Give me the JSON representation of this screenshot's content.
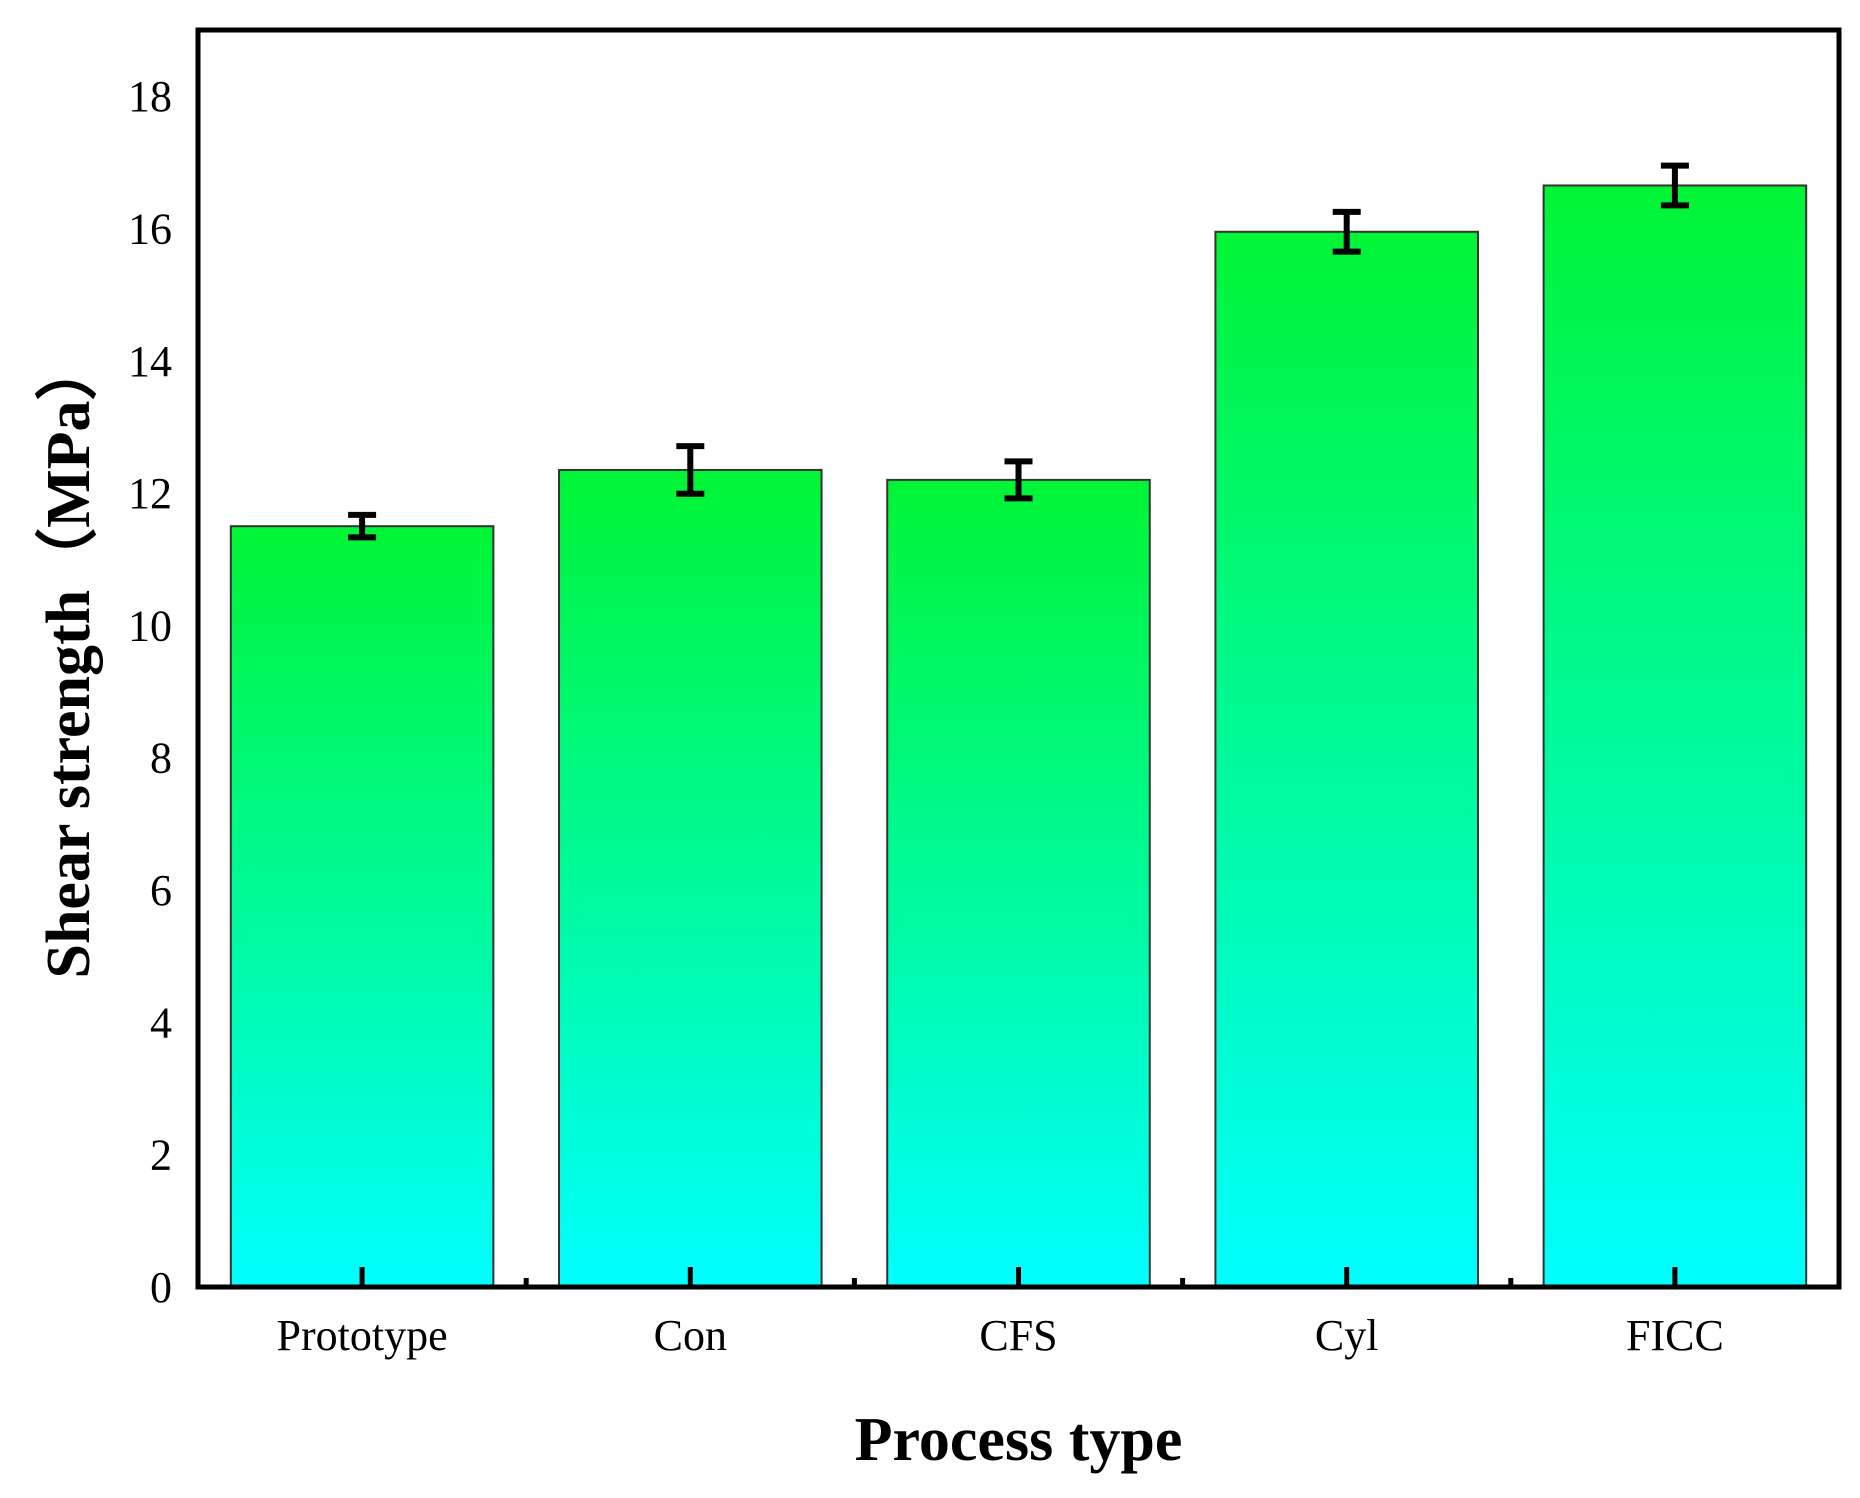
{
  "chart_data": {
    "type": "bar",
    "xlabel": "Process type",
    "ylabel": "Shear strength（MPa）",
    "categories": [
      "Prototype",
      "Con",
      "CFS",
      "Cyl",
      "FICC"
    ],
    "values": [
      11.5,
      12.35,
      12.2,
      15.95,
      16.65
    ],
    "errors": [
      0.17,
      0.36,
      0.28,
      0.3,
      0.3
    ],
    "ylim": [
      0,
      19
    ],
    "yticks": [
      "0",
      "2",
      "4",
      "6",
      "8",
      "10",
      "12",
      "14",
      "16",
      "18"
    ],
    "grid": false,
    "legend": "none",
    "bar_gradient": {
      "top": "#00f535",
      "bottom": "#00ffff"
    }
  }
}
